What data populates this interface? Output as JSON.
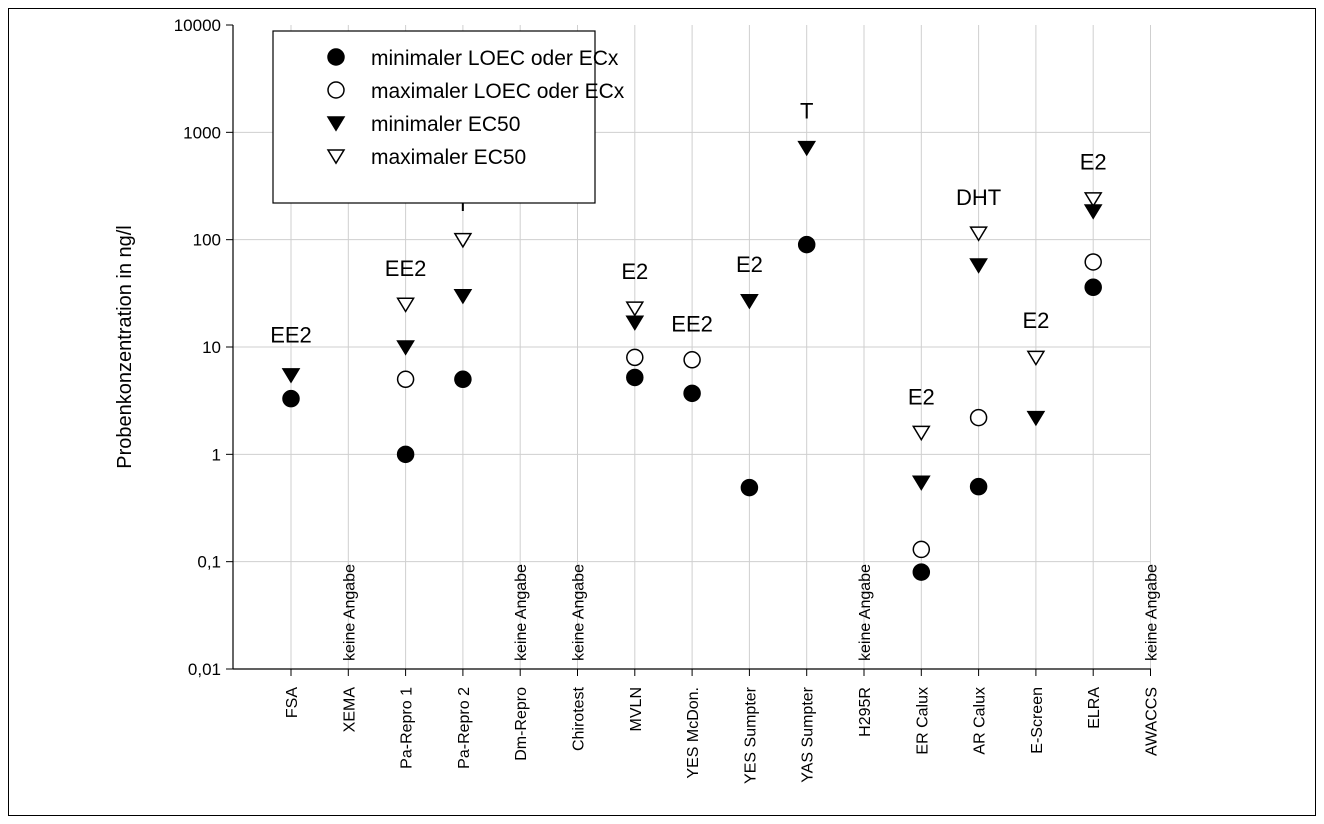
{
  "chart_data": {
    "type": "scatter",
    "ylabel": "Probenkonzentration in ng/l",
    "yscale": "log",
    "ylim": [
      0.01,
      10000
    ],
    "yticks": [
      {
        "value": 0.01,
        "label": "0,01"
      },
      {
        "value": 0.1,
        "label": "0,1"
      },
      {
        "value": 1,
        "label": "1"
      },
      {
        "value": 10,
        "label": "10"
      },
      {
        "value": 100,
        "label": "100"
      },
      {
        "value": 1000,
        "label": "1000"
      },
      {
        "value": 10000,
        "label": "10000"
      }
    ],
    "grid": true,
    "legend_position": "top-left",
    "categories": [
      "FSA",
      "XEMA",
      "Pa-Repro 1",
      "Pa-Repro 2",
      "Dm-Repro",
      "Chirotest",
      "MVLN",
      "YES McDon.",
      "YES Sumpter",
      "YAS Sumpter",
      "H295R",
      "ER Calux",
      "AR Calux",
      "E-Screen",
      "ELRA",
      "AWACCS"
    ],
    "series": [
      {
        "name": "minimaler LOEC oder ECx",
        "marker": "circle-filled",
        "values": [
          3.3,
          null,
          1.0,
          5.0,
          null,
          null,
          5.2,
          3.7,
          0.49,
          90,
          null,
          0.08,
          0.5,
          null,
          36,
          null
        ]
      },
      {
        "name": "maximaler LOEC oder ECx",
        "marker": "circle-open",
        "values": [
          null,
          null,
          5.0,
          null,
          null,
          null,
          8.0,
          7.6,
          null,
          null,
          null,
          0.13,
          2.2,
          null,
          62,
          null
        ]
      },
      {
        "name": "minimaler EC50",
        "marker": "triangle-down-filled",
        "values": [
          5.5,
          null,
          10,
          30,
          null,
          null,
          17,
          null,
          27,
          720,
          null,
          0.55,
          58,
          2.2,
          185,
          null
        ]
      },
      {
        "name": "maximaler EC50",
        "marker": "triangle-down-open",
        "values": [
          null,
          null,
          25,
          100,
          null,
          null,
          23,
          null,
          null,
          null,
          null,
          1.6,
          115,
          8.0,
          240,
          null
        ]
      }
    ],
    "annotations": [
      {
        "category": "FSA",
        "text": "EE2",
        "y": 11
      },
      {
        "category": "Pa-Repro 1",
        "text": "EE2",
        "y": 46
      },
      {
        "category": "Pa-Repro 2",
        "text": "T",
        "y": 185
      },
      {
        "category": "MVLN",
        "text": "E2",
        "y": 43
      },
      {
        "category": "YES McDon.",
        "text": "EE2",
        "y": 14
      },
      {
        "category": "YES Sumpter",
        "text": "E2",
        "y": 50
      },
      {
        "category": "YAS Sumpter",
        "text": "T",
        "y": 1350
      },
      {
        "category": "ER Calux",
        "text": "E2",
        "y": 2.9
      },
      {
        "category": "AR Calux",
        "text": "DHT",
        "y": 210
      },
      {
        "category": "E-Screen",
        "text": "E2",
        "y": 15
      },
      {
        "category": "ELRA",
        "text": "E2",
        "y": 450
      }
    ],
    "no_data": [
      {
        "category": "XEMA",
        "text": "keine Angabe"
      },
      {
        "category": "Dm-Repro",
        "text": "keine Angabe"
      },
      {
        "category": "Chirotest",
        "text": "keine Angabe"
      },
      {
        "category": "H295R",
        "text": "keine Angabe"
      },
      {
        "category": "AWACCS",
        "text": "keine Angabe"
      }
    ]
  }
}
